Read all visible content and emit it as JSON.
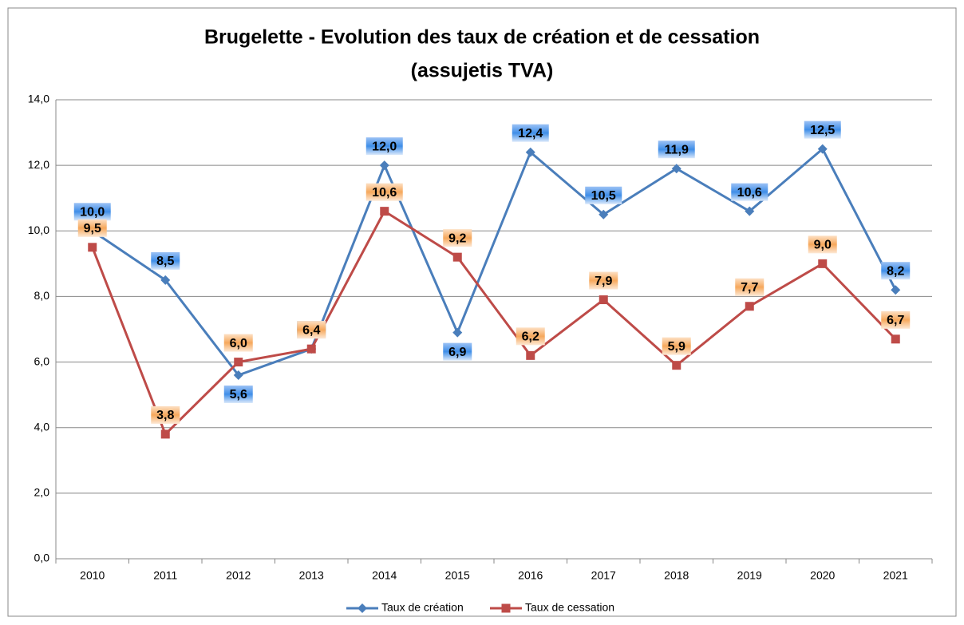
{
  "chart_data": {
    "type": "line",
    "title": [
      "Brugelette - Evolution des taux de création et de cessation",
      "(assujetis TVA)"
    ],
    "categories": [
      "2010",
      "2011",
      "2012",
      "2013",
      "2014",
      "2015",
      "2016",
      "2017",
      "2018",
      "2019",
      "2020",
      "2021"
    ],
    "series": [
      {
        "name": "Taux de création",
        "color": "#4a7ebb",
        "marker": "diamond",
        "values": [
          10.0,
          8.5,
          5.6,
          6.4,
          12.0,
          6.9,
          12.4,
          10.5,
          11.9,
          10.6,
          12.5,
          8.2
        ],
        "value_labels": [
          "10,0",
          "8,5",
          "5,6",
          "6,4",
          "12,0",
          "6,9",
          "12,4",
          "10,5",
          "11,9",
          "10,6",
          "12,5",
          "8,2"
        ]
      },
      {
        "name": "Taux de cessation",
        "color": "#be4b48",
        "marker": "square",
        "values": [
          9.5,
          3.8,
          6.0,
          6.4,
          10.6,
          9.2,
          6.2,
          7.9,
          5.9,
          7.7,
          9.0,
          6.7
        ],
        "value_labels": [
          "9,5",
          "3,8",
          "6,0",
          "6,4",
          "10,6",
          "9,2",
          "6,2",
          "7,9",
          "5,9",
          "7,7",
          "9,0",
          "6,7"
        ]
      }
    ],
    "ylim": [
      0,
      14
    ],
    "yticks": [
      {
        "value": 0,
        "label": "0,0"
      },
      {
        "value": 2,
        "label": "2,0"
      },
      {
        "value": 4,
        "label": "4,0"
      },
      {
        "value": 6,
        "label": "6,0"
      },
      {
        "value": 8,
        "label": "8,0"
      },
      {
        "value": 10,
        "label": "10,0"
      },
      {
        "value": 12,
        "label": "12,0"
      },
      {
        "value": 14,
        "label": "14,0"
      }
    ],
    "grid": true,
    "legend": "bottom"
  }
}
